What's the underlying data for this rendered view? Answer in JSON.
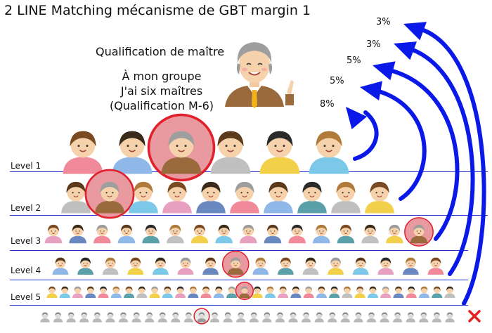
{
  "title": "2 LINE Matching mécanisme de GBT margin 1",
  "qualification": {
    "heading": "Qualification de maître",
    "line1": "À mon groupe",
    "line2": "J'ai six maîtres",
    "line3": "(Qualification M-6)"
  },
  "levels": [
    {
      "label": "Level 1",
      "people": 6,
      "master_index": 2
    },
    {
      "label": "Level 2",
      "people": 10,
      "master_index": 1
    },
    {
      "label": "Level 3",
      "people": 16,
      "master_index": 15
    },
    {
      "label": "Level 4",
      "people": 16,
      "master_index": 7
    },
    {
      "label": "Level 5",
      "people": 32,
      "master_index": 15
    },
    {
      "label": "",
      "people": 32,
      "master_index": 12
    }
  ],
  "percentages": [
    "3%",
    "3%",
    "5%",
    "5%",
    "8%"
  ],
  "colors": {
    "arrow": "#0a19e8",
    "line": "#1f2fd6",
    "master_ring": "#e0202a",
    "cross": "#e62020"
  },
  "icons": {
    "master": "elderly-man-suit-icon",
    "people": "person-avatar-icon",
    "arrow": "curved-arrow-icon",
    "stop": "red-x-icon"
  }
}
